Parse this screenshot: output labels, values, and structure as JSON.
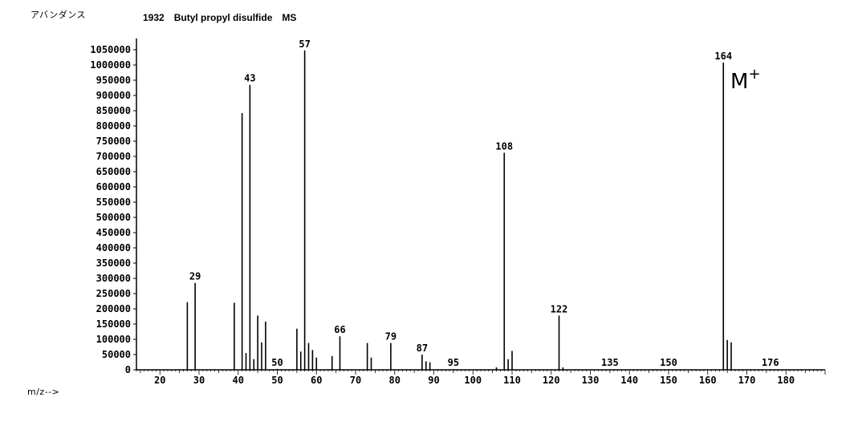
{
  "chart_data": {
    "type": "bar",
    "title": "1932　Butyl propyl disulfide　MS",
    "ylabel": "アバンダンス",
    "xlabel": "m/z-->",
    "xlim": [
      14,
      190
    ],
    "ylim": [
      0,
      1050000
    ],
    "x_ticks": [
      20,
      30,
      40,
      50,
      60,
      70,
      80,
      90,
      100,
      110,
      120,
      130,
      140,
      150,
      160,
      170,
      180
    ],
    "y_ticks": [
      0,
      50000,
      100000,
      150000,
      200000,
      250000,
      300000,
      350000,
      400000,
      450000,
      500000,
      550000,
      600000,
      650000,
      700000,
      750000,
      800000,
      850000,
      900000,
      950000,
      1000000,
      1050000
    ],
    "peaks": [
      {
        "mz": 27,
        "abundance": 222000
      },
      {
        "mz": 29,
        "abundance": 285000,
        "label": "29"
      },
      {
        "mz": 39,
        "abundance": 220000
      },
      {
        "mz": 41,
        "abundance": 842000
      },
      {
        "mz": 42,
        "abundance": 55000
      },
      {
        "mz": 43,
        "abundance": 935000,
        "label": "43"
      },
      {
        "mz": 44,
        "abundance": 35000
      },
      {
        "mz": 45,
        "abundance": 178000
      },
      {
        "mz": 46,
        "abundance": 90000
      },
      {
        "mz": 47,
        "abundance": 158000
      },
      {
        "mz": 50,
        "abundance": 3000,
        "label": "50"
      },
      {
        "mz": 55,
        "abundance": 135000
      },
      {
        "mz": 56,
        "abundance": 60000
      },
      {
        "mz": 57,
        "abundance": 1048000,
        "label": "57"
      },
      {
        "mz": 58,
        "abundance": 88000
      },
      {
        "mz": 59,
        "abundance": 65000
      },
      {
        "mz": 60,
        "abundance": 40000
      },
      {
        "mz": 64,
        "abundance": 45000
      },
      {
        "mz": 66,
        "abundance": 110000,
        "label": "66"
      },
      {
        "mz": 73,
        "abundance": 88000
      },
      {
        "mz": 74,
        "abundance": 40000
      },
      {
        "mz": 79,
        "abundance": 88000,
        "label": "79"
      },
      {
        "mz": 87,
        "abundance": 50000,
        "label": "87"
      },
      {
        "mz": 88,
        "abundance": 28000
      },
      {
        "mz": 89,
        "abundance": 25000
      },
      {
        "mz": 95,
        "abundance": 2000,
        "label": "95"
      },
      {
        "mz": 106,
        "abundance": 8000
      },
      {
        "mz": 108,
        "abundance": 712000,
        "label": "108"
      },
      {
        "mz": 109,
        "abundance": 35000
      },
      {
        "mz": 110,
        "abundance": 62000
      },
      {
        "mz": 122,
        "abundance": 178000,
        "label": "122"
      },
      {
        "mz": 123,
        "abundance": 8000
      },
      {
        "mz": 135,
        "abundance": 2000,
        "label": "135"
      },
      {
        "mz": 150,
        "abundance": 2000,
        "label": "150"
      },
      {
        "mz": 164,
        "abundance": 1008000,
        "label": "164"
      },
      {
        "mz": 165,
        "abundance": 98000
      },
      {
        "mz": 166,
        "abundance": 90000
      },
      {
        "mz": 176,
        "abundance": 2000,
        "label": "176"
      }
    ],
    "annotations": [
      {
        "text": "M",
        "superscript": "+",
        "near_mz": 164
      }
    ],
    "grid": false,
    "legend": "none"
  }
}
